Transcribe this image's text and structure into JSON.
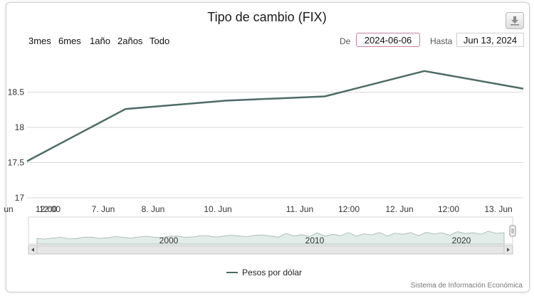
{
  "title": "Tipo de cambio (FIX)",
  "export_icon": "download-icon",
  "range_buttons": [
    "3mes",
    "6mes",
    "1año",
    "2años",
    "Todo"
  ],
  "date_from": {
    "label": "De",
    "value": "2024-06-06"
  },
  "date_to": {
    "label": "Hasta",
    "value": "Jun 13, 2024"
  },
  "legend": "Pesos por dólar",
  "credit": "Sistema de Información Económica",
  "colors": {
    "line": "#4e6b66",
    "navigator_fill": "#e2ece9",
    "highlight_border": "#c87fa1"
  },
  "chart_data": {
    "type": "line",
    "title": "Tipo de cambio (FIX)",
    "y_ticks": [
      "17",
      "17.5",
      "18",
      "18.5"
    ],
    "ylim": [
      17,
      18.95
    ],
    "x_labels": [
      "un",
      "12:00",
      "12:00",
      "7. Jun",
      "8. Jun",
      "10. Jun",
      "11. Jun",
      "12:00",
      "12. Jun",
      "12:00",
      "13. Jun"
    ],
    "series": [
      {
        "name": "Pesos por dólar",
        "x": [
          "2024-06-06",
          "2024-06-07",
          "2024-06-10",
          "2024-06-11",
          "2024-06-12",
          "2024-06-13"
        ],
        "values": [
          17.52,
          18.26,
          18.38,
          18.44,
          18.8,
          18.55
        ]
      }
    ],
    "navigator": {
      "labels": [
        "2000",
        "2010",
        "2020"
      ]
    },
    "grid": true,
    "legend_position": "bottom"
  }
}
